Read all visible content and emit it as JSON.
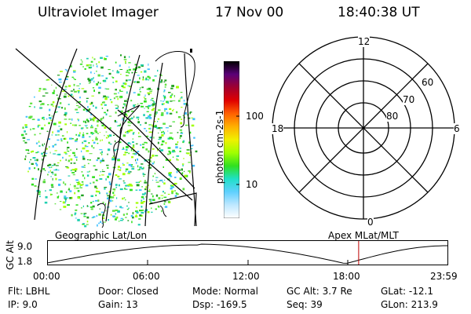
{
  "header": {
    "instrument": "Ultraviolet Imager",
    "date": "17 Nov 00",
    "time": "18:40:38 UT"
  },
  "image_panel": {
    "projection_label": "Geographic Lat/Lon"
  },
  "colorbar": {
    "unit_label": "photon cm-2s-1",
    "ticks": [
      "100",
      "10"
    ],
    "colors": [
      "#000000",
      "#5a0078",
      "#a00030",
      "#e00000",
      "#ff6000",
      "#ffb000",
      "#f0f000",
      "#a0ff00",
      "#30e020",
      "#20e0c8",
      "#60d0ff",
      "#c0e8ff",
      "#ffffff"
    ]
  },
  "polar_plot": {
    "mlt_labels": {
      "top": "12",
      "left": "18",
      "right": "6",
      "bottom": "0"
    },
    "lat_labels": [
      "60",
      "70",
      "80"
    ],
    "coord_label": "Apex MLat/MLT"
  },
  "orbit_plot": {
    "y_title": "GC Alt",
    "y_ticks": [
      "9.0",
      "1.8"
    ],
    "x_ticks": [
      "00:00",
      "06:00",
      "12:00",
      "18:00",
      "23:59"
    ],
    "current_time_marker_hours": 18.677
  },
  "info": {
    "filter": "Flt: LBHL",
    "door": "Door: Closed",
    "mode": "Mode: Normal",
    "gc_alt": "GC Alt: 3.7 Re",
    "glat": "GLat: -12.1",
    "ip": "IP:  9.0",
    "gain": "Gain: 13",
    "dsp": "Dsp: -169.5",
    "seq": "Seq: 39",
    "glon": "GLon: 213.9"
  }
}
